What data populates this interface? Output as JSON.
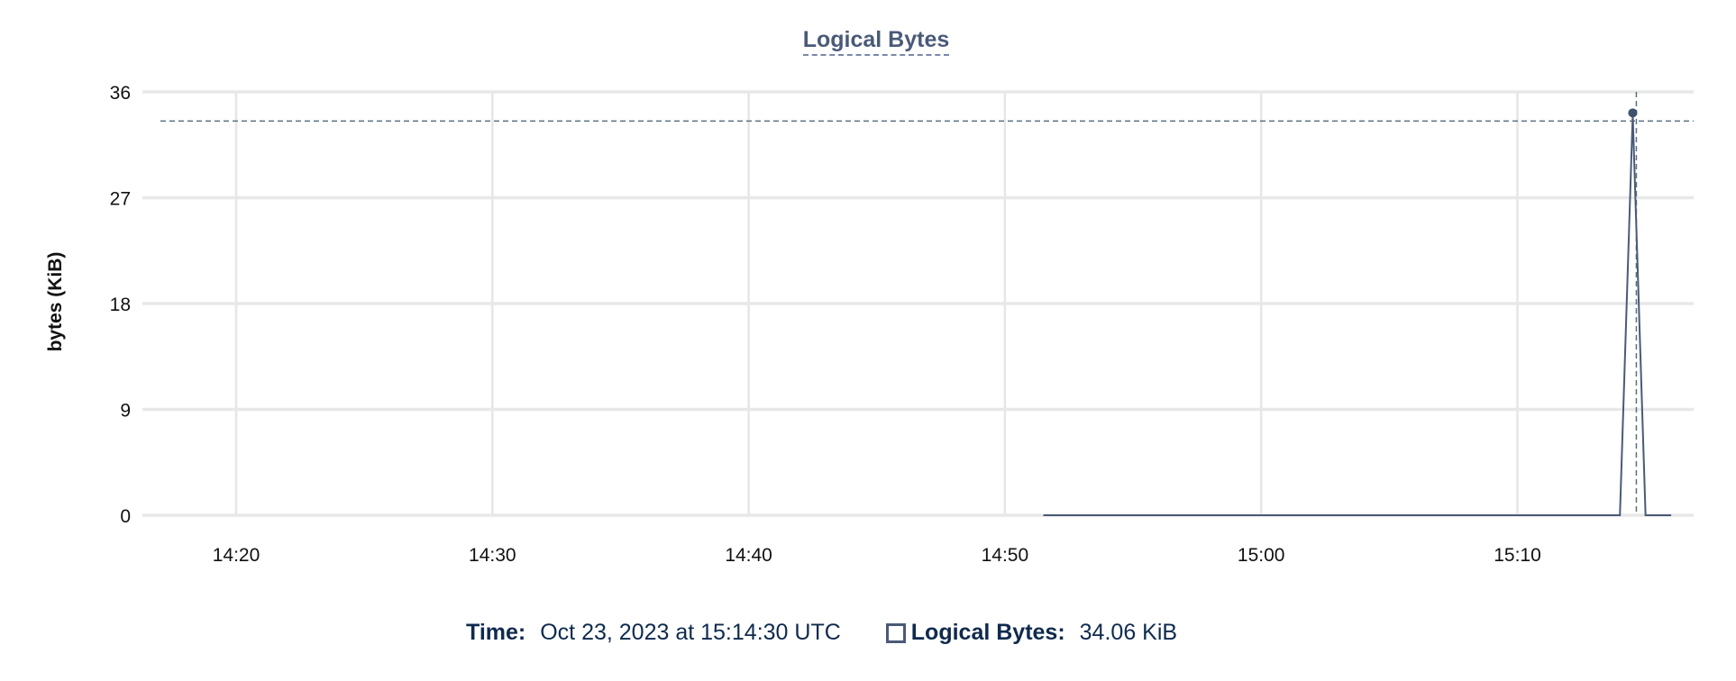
{
  "chart_data": {
    "type": "line",
    "title": "Logical Bytes",
    "xlabel": "",
    "ylabel": "bytes (KiB)",
    "ylim": [
      0,
      36
    ],
    "yticks": [
      "0",
      "9",
      "18",
      "27",
      "36"
    ],
    "ytick_values": [
      0,
      9,
      18,
      27,
      36
    ],
    "xlim": [
      "14:17:00",
      "15:17:40"
    ],
    "xticks": [
      "14:20",
      "14:30",
      "14:40",
      "14:50",
      "15:00",
      "15:10"
    ],
    "grid": true,
    "series": [
      {
        "name": "Logical Bytes",
        "color": "#4a5a78",
        "x": [
          "14:51:30",
          "15:14:00",
          "15:14:30",
          "15:15:00",
          "15:16:00"
        ],
        "y": [
          0,
          0,
          34.06,
          0,
          0
        ]
      }
    ],
    "crosshair": {
      "x": "15:14:30",
      "y": 34.06
    }
  },
  "legend": {
    "time_label": "Time:",
    "time_value": "Oct 23, 2023 at 15:14:30 UTC",
    "series_label": "Logical Bytes:",
    "series_value": "34.06 KiB"
  }
}
